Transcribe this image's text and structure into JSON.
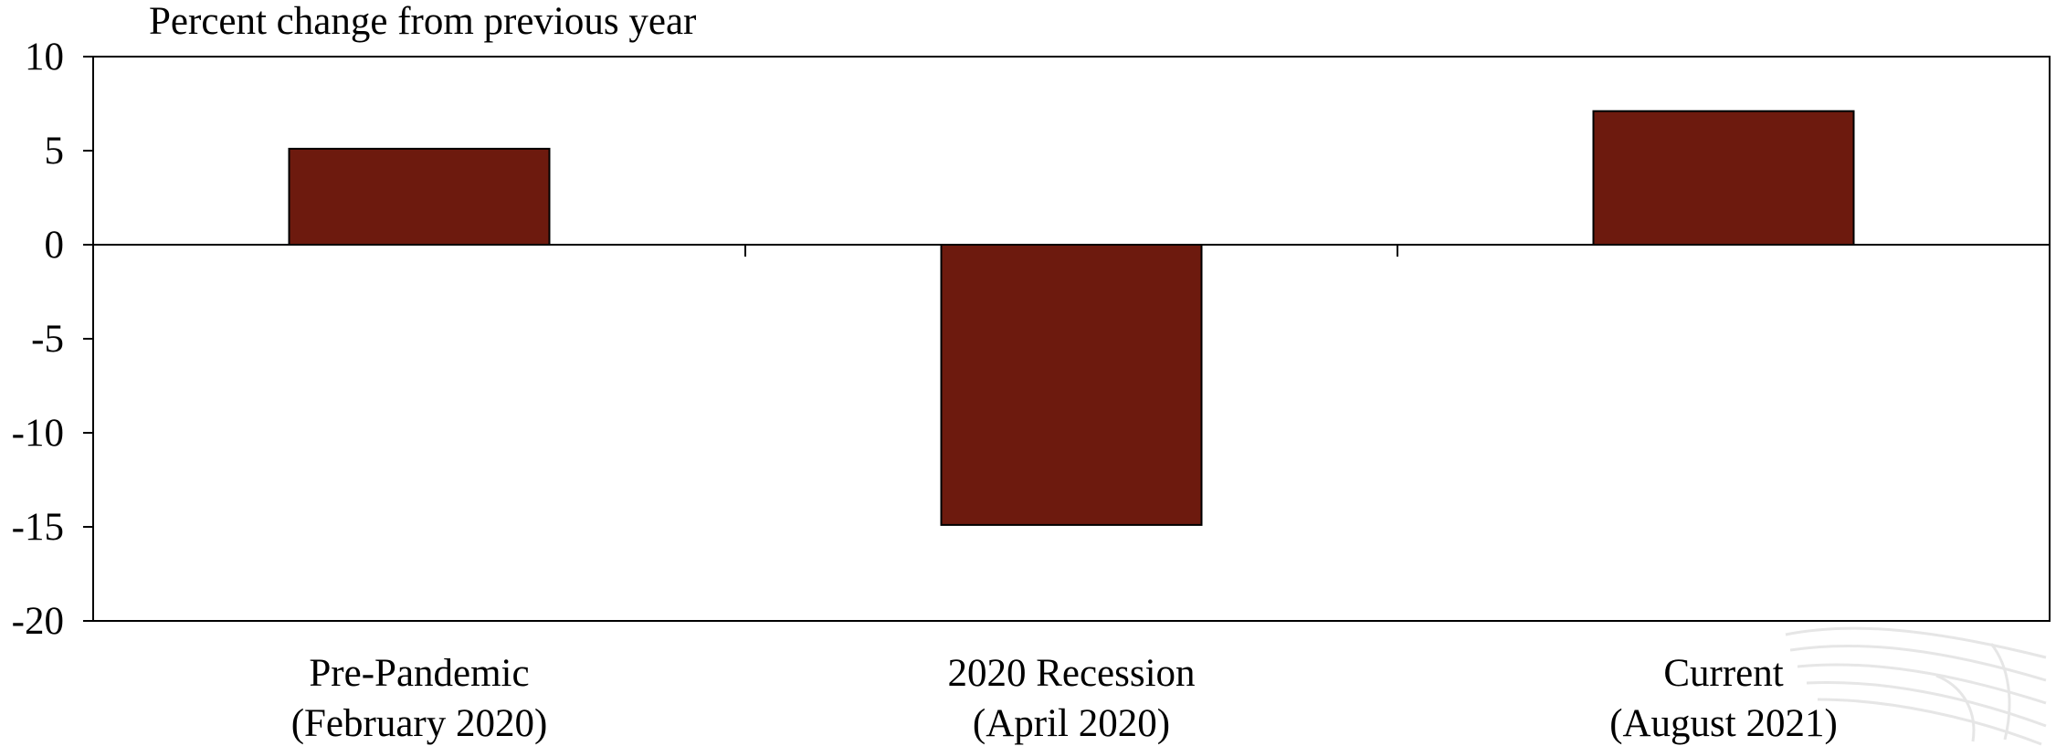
{
  "chart_data": {
    "type": "bar",
    "ylabel": "Percent change from previous year",
    "categories": [
      [
        "Pre-Pandemic",
        "(February 2020)"
      ],
      [
        "2020 Recession",
        "(April 2020)"
      ],
      [
        "Current",
        "(August 2021)"
      ]
    ],
    "values": [
      5.1,
      -14.9,
      7.1
    ],
    "ylim": [
      -20,
      10
    ],
    "yticks": [
      "10",
      "5",
      "0",
      "-5",
      "-10",
      "-15",
      "-20"
    ],
    "ytick_values": [
      10,
      5,
      0,
      -5,
      -10,
      -15,
      -20
    ],
    "grid": false,
    "legend": "none",
    "colors": {
      "bar_fill": "#6d1a0e",
      "bar_stroke": "#000000",
      "axis": "#000000",
      "watermark": "#e6e6e6"
    }
  },
  "watermark": {
    "icon": "eagle-feather-logo-icon"
  }
}
